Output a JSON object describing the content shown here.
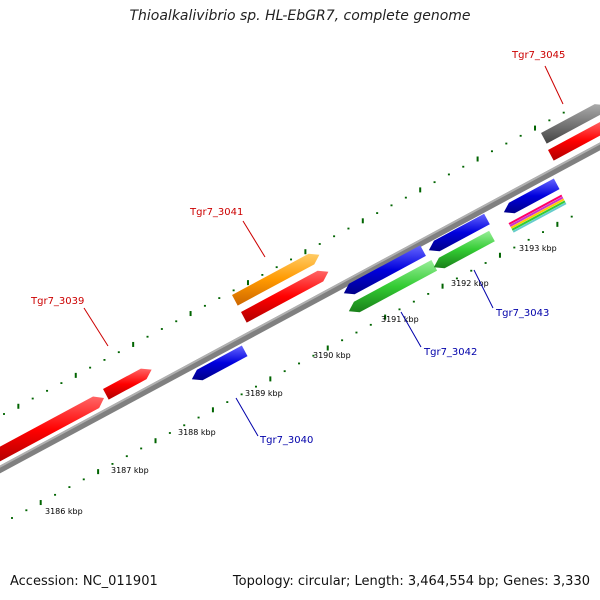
{
  "title": "Thioalkalivibrio sp. HL-EbGR7, complete genome",
  "footer": {
    "accession": "Accession: NC_011901",
    "topology": "Topology: circular; Length: 3,464,554 bp; Genes: 3,330"
  },
  "colors": {
    "backbone": "#808080",
    "tick": "#006400",
    "red": "#ff0000",
    "blue": "#0000dd",
    "orange": "#ff9900",
    "green": "#33cc33",
    "gray": "#777777",
    "label_red": "#cc0000",
    "label_blue": "#0000aa"
  },
  "kbp_labels": [
    "3186 kbp",
    "3187 kbp",
    "3188 kbp",
    "3189 kbp",
    "3190 kbp",
    "3191 kbp",
    "3192 kbp",
    "3193 kbp"
  ],
  "genes": [
    {
      "label": "Tgr7_3039",
      "color": "red",
      "strand": "forward"
    },
    {
      "label": "Tgr7_3040",
      "color": "blue",
      "strand": "reverse"
    },
    {
      "label": "Tgr7_3041",
      "color": "orange",
      "strand": "forward"
    },
    {
      "label": "Tgr7_3042",
      "color": "green",
      "strand": "reverse"
    },
    {
      "label": "Tgr7_3043",
      "color": "blue",
      "strand": "reverse"
    },
    {
      "label": "Tgr7_3045",
      "color": "gray",
      "strand": "forward"
    }
  ]
}
